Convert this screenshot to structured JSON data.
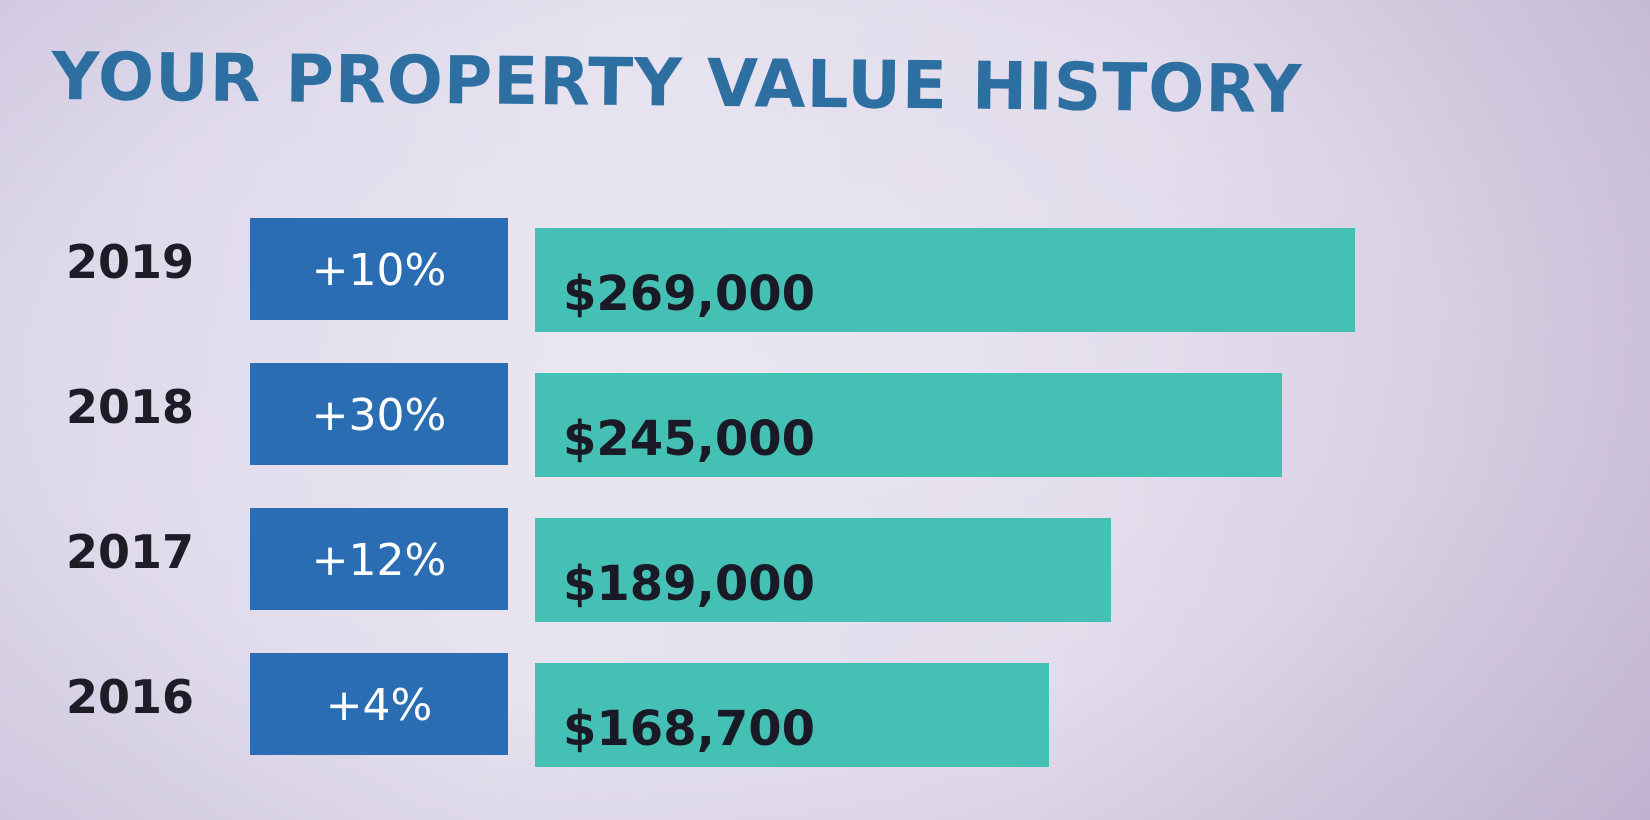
{
  "chart_data": {
    "type": "bar",
    "orientation": "horizontal",
    "title": "YOUR PROPERTY VALUE HISTORY",
    "categories": [
      "2019",
      "2018",
      "2017",
      "2016"
    ],
    "values": [
      269000,
      245000,
      189000,
      168700
    ],
    "value_labels": [
      "$269,000",
      "$245,000",
      "$189,000",
      "$168,700"
    ],
    "change_labels": [
      "+10%",
      "+30%",
      "+12%",
      "+4%"
    ],
    "xlim": [
      0,
      269000
    ],
    "grid": false,
    "legend": "none",
    "colors": {
      "title": "#2e6fa2",
      "change_box": "#2a6db3",
      "bar": "#45c0b4",
      "year_text": "#1d1d28",
      "value_text": "#1a1a26"
    }
  }
}
